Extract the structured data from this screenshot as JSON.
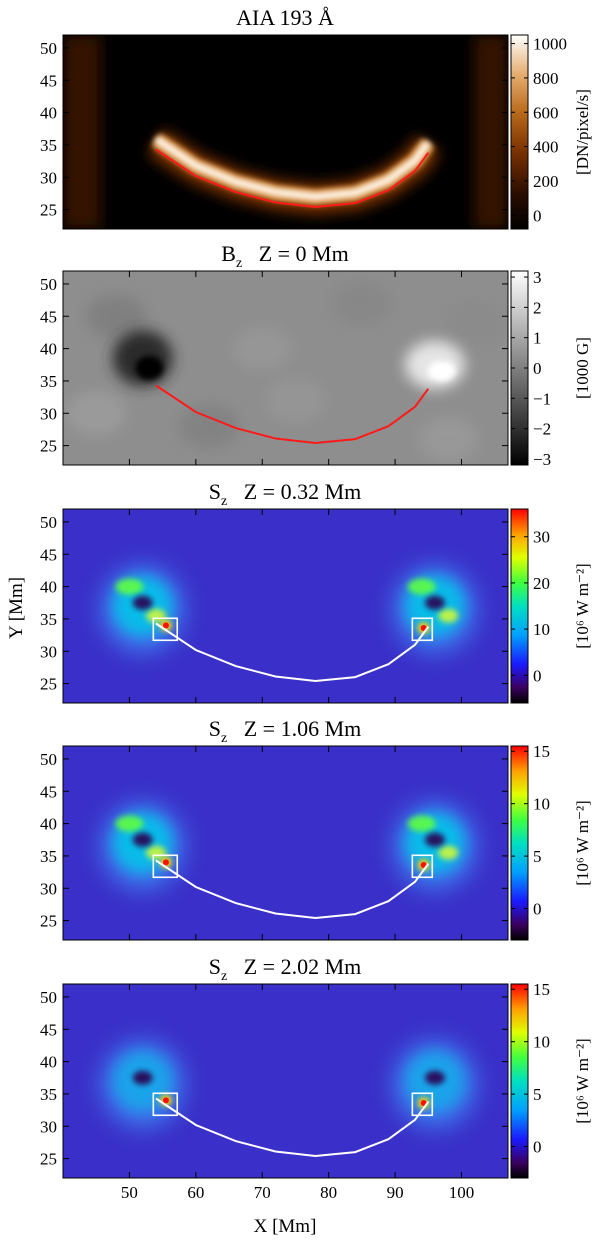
{
  "figure": {
    "y_axis_label": "Y [Mm]",
    "x_axis_label": "X [Mm]"
  },
  "panels": [
    {
      "title_main": "AIA   193 Å",
      "title_sub": "",
      "title_rest": "",
      "colormap": "heat",
      "cbar_label": "[DN/pixel/s]",
      "cbar_ticks": [
        "0",
        "200",
        "400",
        "600",
        "800",
        "1000"
      ],
      "cbar_range": [
        -80,
        1050
      ],
      "overlay_color": "#ff1a1a",
      "boxes": false
    },
    {
      "title_main": "B",
      "title_sub": "z",
      "title_rest": "Z = 0 Mm",
      "colormap": "gray",
      "cbar_label": "[1000 G]",
      "cbar_ticks": [
        "−3",
        "−2",
        "−1",
        "0",
        "1",
        "2",
        "3"
      ],
      "cbar_range": [
        -3.2,
        3.2
      ],
      "overlay_color": "#ff1a1a",
      "boxes": false
    },
    {
      "title_main": "S",
      "title_sub": "z",
      "title_rest": "Z = 0.32 Mm",
      "colormap": "jet",
      "cbar_label": "[10⁶ W m⁻²]",
      "cbar_ticks": [
        "0",
        "10",
        "20",
        "30"
      ],
      "cbar_range": [
        -6,
        36
      ],
      "overlay_color": "#ffffff",
      "boxes": true
    },
    {
      "title_main": "S",
      "title_sub": "z",
      "title_rest": "Z = 1.06 Mm",
      "colormap": "jet",
      "cbar_label": "[10⁶ W m⁻²]",
      "cbar_ticks": [
        "0",
        "5",
        "10",
        "15"
      ],
      "cbar_range": [
        -3,
        15.5
      ],
      "overlay_color": "#ffffff",
      "boxes": true
    },
    {
      "title_main": "S",
      "title_sub": "z",
      "title_rest": "Z = 2.02 Mm",
      "colormap": "jet",
      "cbar_label": "[10⁶ W m⁻²]",
      "cbar_ticks": [
        "0",
        "5",
        "10",
        "15"
      ],
      "cbar_range": [
        -3,
        15.5
      ],
      "overlay_color": "#ffffff",
      "boxes": true
    }
  ],
  "chart_data": {
    "type": "heatmap",
    "xlim": [
      40,
      107
    ],
    "ylim": [
      22,
      52
    ],
    "x_ticks": [
      50,
      60,
      70,
      80,
      90,
      100
    ],
    "y_ticks": [
      25,
      30,
      35,
      40,
      45,
      50
    ],
    "xlabel": "X [Mm]",
    "ylabel": "Y [Mm]",
    "loop_path": [
      [
        54,
        34.3
      ],
      [
        60,
        30.2
      ],
      [
        66,
        27.7
      ],
      [
        72,
        26.1
      ],
      [
        78,
        25.4
      ],
      [
        84,
        26.0
      ],
      [
        89,
        28.0
      ],
      [
        93,
        31.0
      ],
      [
        95,
        33.8
      ]
    ],
    "footpoint_boxes": [
      {
        "x": [
          53.6,
          57.2
        ],
        "y": [
          31.7,
          35.1
        ]
      },
      {
        "x": [
          92.6,
          95.6
        ],
        "y": [
          31.7,
          35.1
        ]
      }
    ]
  }
}
